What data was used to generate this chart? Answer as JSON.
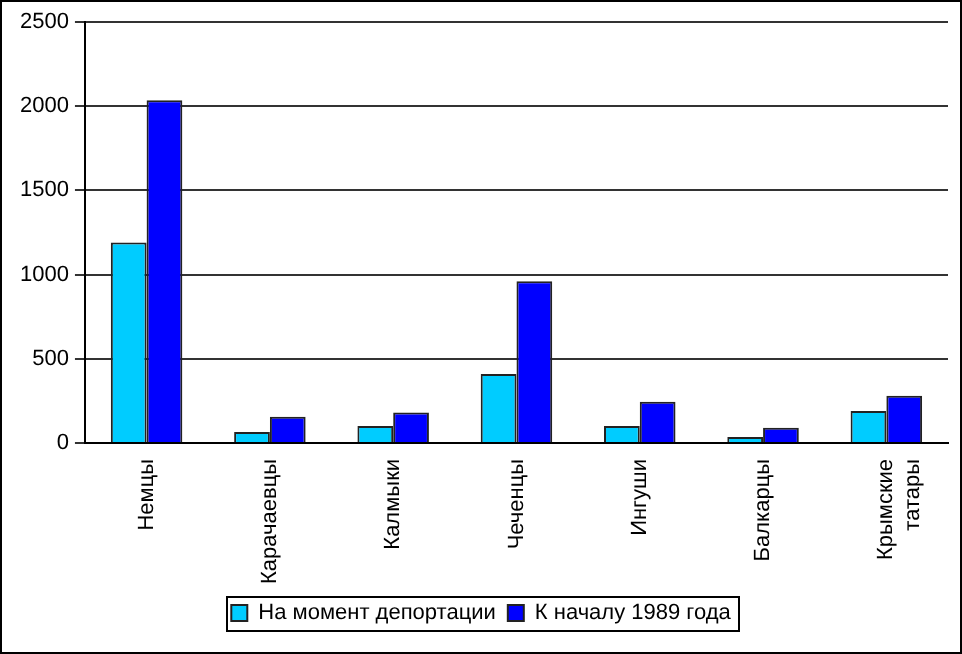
{
  "chart_data": {
    "type": "bar",
    "categories": [
      "Немцы",
      "Карачаевцы",
      "Калмыки",
      "Чеченцы",
      "Ингуши",
      "Балкарцы",
      "Крымские татары"
    ],
    "series": [
      {
        "name": "На момент депортации",
        "color": "#00ccff",
        "values": [
          1190,
          65,
          100,
          410,
          100,
          35,
          190
        ]
      },
      {
        "name": "К началу 1989 года",
        "color": "#0000ff",
        "values": [
          2035,
          155,
          180,
          960,
          245,
          90,
          280
        ]
      }
    ],
    "ylim": [
      0,
      2500
    ],
    "yticks": [
      0,
      500,
      1000,
      1500,
      2000,
      2500
    ],
    "grid": "y",
    "legend": "bottom"
  }
}
